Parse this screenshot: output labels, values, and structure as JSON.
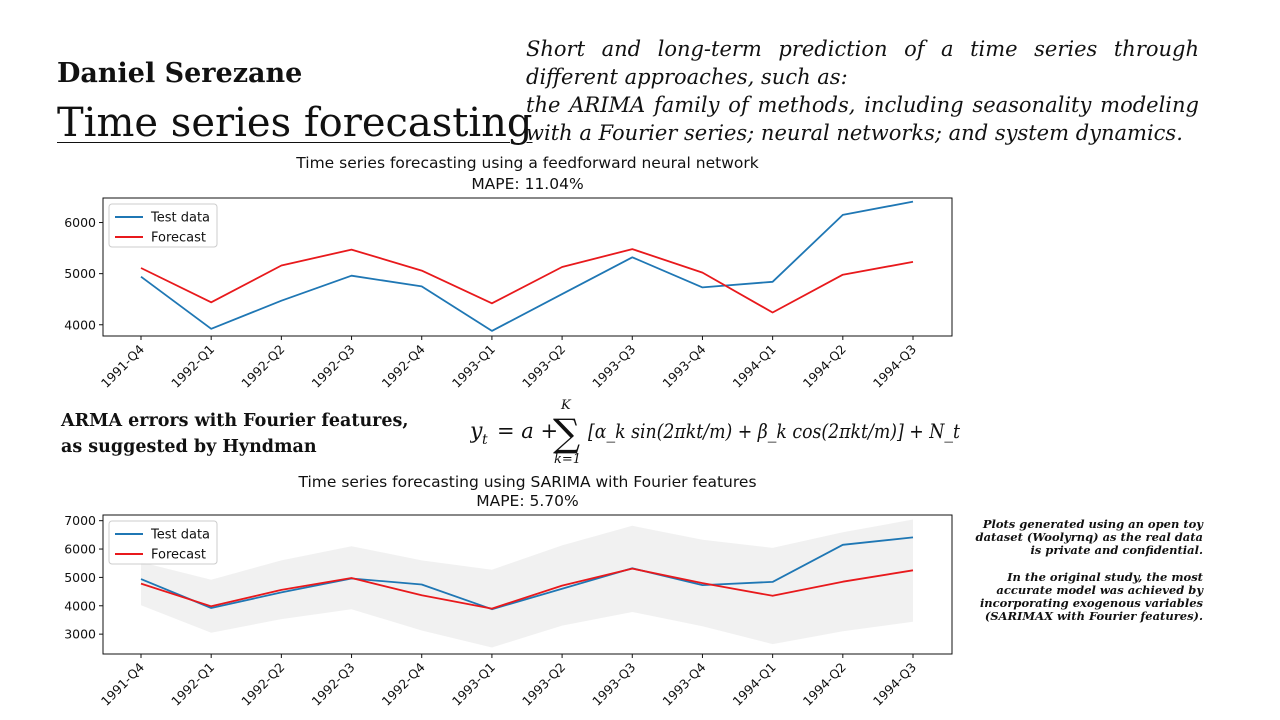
{
  "header": {
    "author": "Daniel Serezane",
    "project_title": "Time series forecasting",
    "intro_line1": "Short and long-term prediction of a time series through different approaches, such as:",
    "intro_line2": "the ARIMA family of methods, including seasonality modeling with a Fourier series; neural networks; and system dynamics."
  },
  "section": {
    "arma_line1": "ARMA errors with Fourier features,",
    "arma_line2": "as suggested by Hyndman",
    "formula": {
      "lhs": "y",
      "lhs_sub": "t",
      "eq": "= a +",
      "sum_upper": "K",
      "sum_lower": "k=1",
      "body": "[α_k sin(2πkt/m) + β_k cos(2πkt/m)] + N_t"
    }
  },
  "notes": {
    "note1": "Plots generated using an open toy dataset (Woolyrnq) as the real data is private and confidential.",
    "note2": "In the original study, the most accurate model was achieved by incorporating exogenous variables (SARIMAX with Fourier features)."
  },
  "colors": {
    "test": "#1f77b4",
    "forecast": "#e8191c",
    "band": "#d9d9d9"
  },
  "chart_data": [
    {
      "type": "line",
      "title": "Time series forecasting using a feedforward neural network",
      "subtitle": "MAPE: 11.04%",
      "categories": [
        "1991-Q4",
        "1992-Q1",
        "1992-Q2",
        "1992-Q3",
        "1992-Q4",
        "1993-Q1",
        "1993-Q2",
        "1993-Q3",
        "1993-Q4",
        "1994-Q1",
        "1994-Q2",
        "1994-Q3"
      ],
      "ylim": [
        3780,
        6480
      ],
      "yticks": [
        4000,
        5000,
        6000
      ],
      "legend": "top-left",
      "series": [
        {
          "name": "Test data",
          "color": "#1f77b4",
          "values": [
            4940,
            3920,
            4470,
            4960,
            4750,
            3880,
            4600,
            5320,
            4730,
            4840,
            6150,
            6410
          ]
        },
        {
          "name": "Forecast",
          "color": "#e8191c",
          "values": [
            5110,
            4440,
            5160,
            5470,
            5060,
            4420,
            5130,
            5480,
            5020,
            4240,
            4980,
            5230
          ]
        }
      ]
    },
    {
      "type": "line",
      "title": "Time series forecasting using SARIMA with Fourier features",
      "subtitle": "MAPE: 5.70%",
      "categories": [
        "1991-Q4",
        "1992-Q1",
        "1992-Q2",
        "1992-Q3",
        "1992-Q4",
        "1993-Q1",
        "1993-Q2",
        "1993-Q3",
        "1993-Q4",
        "1994-Q1",
        "1994-Q2",
        "1994-Q3"
      ],
      "ylim": [
        2300,
        7200
      ],
      "yticks": [
        3000,
        4000,
        5000,
        6000,
        7000
      ],
      "legend": "top-left",
      "series": [
        {
          "name": "Test data",
          "color": "#1f77b4",
          "values": [
            4940,
            3920,
            4470,
            4960,
            4750,
            3880,
            4600,
            5320,
            4730,
            4840,
            6150,
            6410
          ]
        },
        {
          "name": "Forecast",
          "color": "#e8191c",
          "values": [
            4780,
            3980,
            4560,
            4980,
            4370,
            3900,
            4710,
            5310,
            4800,
            4350,
            4850,
            5250
          ]
        }
      ],
      "interval": {
        "lower": [
          4020,
          3050,
          3530,
          3880,
          3130,
          2530,
          3300,
          3780,
          3280,
          2650,
          3100,
          3440
        ],
        "upper": [
          5540,
          4920,
          5600,
          6100,
          5600,
          5270,
          6130,
          6820,
          6330,
          6040,
          6590,
          7040
        ]
      }
    }
  ]
}
